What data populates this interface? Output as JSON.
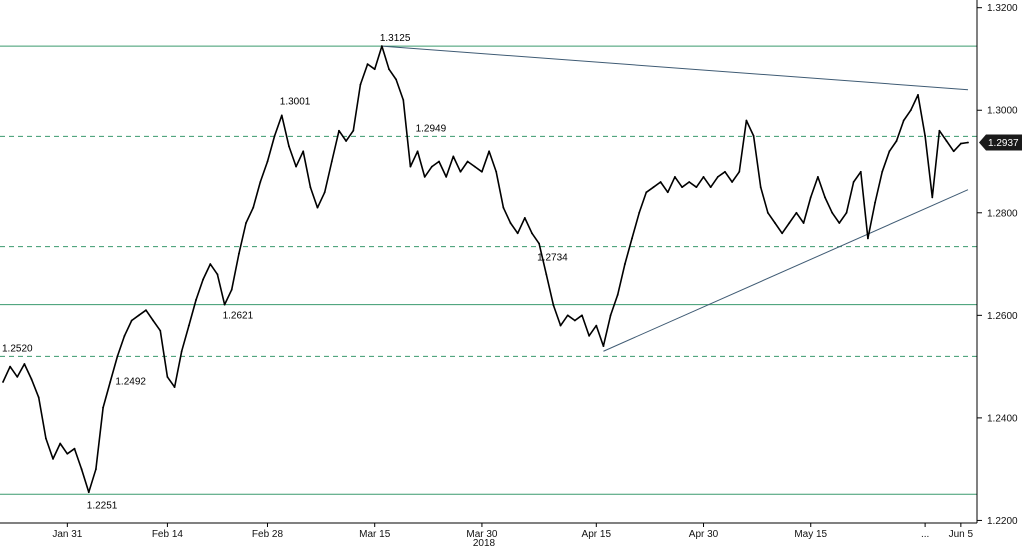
{
  "chart_data": {
    "type": "line",
    "title": "",
    "x_axis": {
      "year_label": "2018",
      "date_range": [
        "2018-01-22",
        "2018-06-06"
      ],
      "ticks": [
        {
          "label": "Jan 31",
          "date": "2018-01-31"
        },
        {
          "label": "Feb 14",
          "date": "2018-02-14"
        },
        {
          "label": "Feb 28",
          "date": "2018-02-28"
        },
        {
          "label": "Mar 15",
          "date": "2018-03-15"
        },
        {
          "label": "Mar 30",
          "date": "2018-03-30"
        },
        {
          "label": "Apr 15",
          "date": "2018-04-15"
        },
        {
          "label": "Apr 30",
          "date": "2018-04-30"
        },
        {
          "label": "May 15",
          "date": "2018-05-15"
        },
        {
          "label": "...",
          "date": "2018-05-31"
        },
        {
          "label": "Jun 5",
          "date": "2018-06-05"
        }
      ]
    },
    "y_axis": {
      "position": "right",
      "ylim": [
        1.2195,
        1.3215
      ],
      "ticks": [
        "1.2200",
        "1.2400",
        "1.2600",
        "1.2800",
        "1.3000",
        "1.3200"
      ]
    },
    "series": [
      {
        "values": [
          [
            "2018-01-22",
            1.247
          ],
          [
            "2018-01-23",
            1.25
          ],
          [
            "2018-01-24",
            1.248
          ],
          [
            "2018-01-25",
            1.2505
          ],
          [
            "2018-01-26",
            1.2475
          ],
          [
            "2018-01-27",
            1.244
          ],
          [
            "2018-01-28",
            1.236
          ],
          [
            "2018-01-29",
            1.232
          ],
          [
            "2018-01-30",
            1.235
          ],
          [
            "2018-01-31",
            1.233
          ],
          [
            "2018-02-01",
            1.234
          ],
          [
            "2018-02-02",
            1.23
          ],
          [
            "2018-02-03",
            1.2255
          ],
          [
            "2018-02-04",
            1.23
          ],
          [
            "2018-02-05",
            1.242
          ],
          [
            "2018-02-06",
            1.247
          ],
          [
            "2018-02-07",
            1.252
          ],
          [
            "2018-02-08",
            1.256
          ],
          [
            "2018-02-09",
            1.259
          ],
          [
            "2018-02-10",
            1.26
          ],
          [
            "2018-02-11",
            1.261
          ],
          [
            "2018-02-12",
            1.259
          ],
          [
            "2018-02-13",
            1.257
          ],
          [
            "2018-02-14",
            1.248
          ],
          [
            "2018-02-15",
            1.246
          ],
          [
            "2018-02-16",
            1.253
          ],
          [
            "2018-02-17",
            1.258
          ],
          [
            "2018-02-18",
            1.263
          ],
          [
            "2018-02-19",
            1.267
          ],
          [
            "2018-02-20",
            1.27
          ],
          [
            "2018-02-21",
            1.268
          ],
          [
            "2018-02-22",
            1.2621
          ],
          [
            "2018-02-23",
            1.265
          ],
          [
            "2018-02-24",
            1.272
          ],
          [
            "2018-02-25",
            1.278
          ],
          [
            "2018-02-26",
            1.281
          ],
          [
            "2018-02-27",
            1.286
          ],
          [
            "2018-02-28",
            1.29
          ],
          [
            "2018-03-01",
            1.295
          ],
          [
            "2018-03-02",
            1.299
          ],
          [
            "2018-03-03",
            1.293
          ],
          [
            "2018-03-04",
            1.289
          ],
          [
            "2018-03-05",
            1.292
          ],
          [
            "2018-03-06",
            1.285
          ],
          [
            "2018-03-07",
            1.281
          ],
          [
            "2018-03-08",
            1.284
          ],
          [
            "2018-03-09",
            1.29
          ],
          [
            "2018-03-10",
            1.296
          ],
          [
            "2018-03-11",
            1.294
          ],
          [
            "2018-03-12",
            1.296
          ],
          [
            "2018-03-13",
            1.305
          ],
          [
            "2018-03-14",
            1.309
          ],
          [
            "2018-03-15",
            1.308
          ],
          [
            "2018-03-16",
            1.3125
          ],
          [
            "2018-03-17",
            1.308
          ],
          [
            "2018-03-18",
            1.306
          ],
          [
            "2018-03-19",
            1.302
          ],
          [
            "2018-03-20",
            1.289
          ],
          [
            "2018-03-21",
            1.292
          ],
          [
            "2018-03-22",
            1.287
          ],
          [
            "2018-03-23",
            1.289
          ],
          [
            "2018-03-24",
            1.29
          ],
          [
            "2018-03-25",
            1.287
          ],
          [
            "2018-03-26",
            1.291
          ],
          [
            "2018-03-27",
            1.288
          ],
          [
            "2018-03-28",
            1.29
          ],
          [
            "2018-03-29",
            1.289
          ],
          [
            "2018-03-30",
            1.288
          ],
          [
            "2018-03-31",
            1.292
          ],
          [
            "2018-04-01",
            1.288
          ],
          [
            "2018-04-02",
            1.281
          ],
          [
            "2018-04-03",
            1.278
          ],
          [
            "2018-04-04",
            1.276
          ],
          [
            "2018-04-05",
            1.279
          ],
          [
            "2018-04-06",
            1.276
          ],
          [
            "2018-04-07",
            1.274
          ],
          [
            "2018-04-08",
            1.268
          ],
          [
            "2018-04-09",
            1.262
          ],
          [
            "2018-04-10",
            1.258
          ],
          [
            "2018-04-11",
            1.26
          ],
          [
            "2018-04-12",
            1.259
          ],
          [
            "2018-04-13",
            1.26
          ],
          [
            "2018-04-14",
            1.256
          ],
          [
            "2018-04-15",
            1.258
          ],
          [
            "2018-04-16",
            1.254
          ],
          [
            "2018-04-17",
            1.26
          ],
          [
            "2018-04-18",
            1.264
          ],
          [
            "2018-04-19",
            1.27
          ],
          [
            "2018-04-20",
            1.275
          ],
          [
            "2018-04-21",
            1.28
          ],
          [
            "2018-04-22",
            1.284
          ],
          [
            "2018-04-23",
            1.285
          ],
          [
            "2018-04-24",
            1.286
          ],
          [
            "2018-04-25",
            1.284
          ],
          [
            "2018-04-26",
            1.287
          ],
          [
            "2018-04-27",
            1.285
          ],
          [
            "2018-04-28",
            1.286
          ],
          [
            "2018-04-29",
            1.285
          ],
          [
            "2018-04-30",
            1.287
          ],
          [
            "2018-05-01",
            1.285
          ],
          [
            "2018-05-02",
            1.287
          ],
          [
            "2018-05-03",
            1.288
          ],
          [
            "2018-05-04",
            1.286
          ],
          [
            "2018-05-05",
            1.288
          ],
          [
            "2018-05-06",
            1.298
          ],
          [
            "2018-05-07",
            1.295
          ],
          [
            "2018-05-08",
            1.285
          ],
          [
            "2018-05-09",
            1.28
          ],
          [
            "2018-05-10",
            1.278
          ],
          [
            "2018-05-11",
            1.276
          ],
          [
            "2018-05-12",
            1.278
          ],
          [
            "2018-05-13",
            1.28
          ],
          [
            "2018-05-14",
            1.278
          ],
          [
            "2018-05-15",
            1.283
          ],
          [
            "2018-05-16",
            1.287
          ],
          [
            "2018-05-17",
            1.283
          ],
          [
            "2018-05-18",
            1.28
          ],
          [
            "2018-05-19",
            1.278
          ],
          [
            "2018-05-20",
            1.28
          ],
          [
            "2018-05-21",
            1.286
          ],
          [
            "2018-05-22",
            1.288
          ],
          [
            "2018-05-23",
            1.275
          ],
          [
            "2018-05-24",
            1.282
          ],
          [
            "2018-05-25",
            1.288
          ],
          [
            "2018-05-26",
            1.292
          ],
          [
            "2018-05-27",
            1.294
          ],
          [
            "2018-05-28",
            1.298
          ],
          [
            "2018-05-29",
            1.3
          ],
          [
            "2018-05-30",
            1.303
          ],
          [
            "2018-05-31",
            1.295
          ],
          [
            "2018-06-01",
            1.283
          ],
          [
            "2018-06-02",
            1.296
          ],
          [
            "2018-06-03",
            1.294
          ],
          [
            "2018-06-04",
            1.292
          ],
          [
            "2018-06-05",
            1.2935
          ],
          [
            "2018-06-06",
            1.2937
          ]
        ],
        "color": "#000000"
      }
    ],
    "last_value": {
      "label": "1.2937",
      "value": 1.2937
    },
    "annotations": [
      {
        "label": "1.2520",
        "date": "2018-01-22",
        "value": 1.252
      },
      {
        "label": "1.2251",
        "date": "2018-02-03",
        "value": 1.2251
      },
      {
        "label": "1.2492",
        "date": "2018-02-07",
        "value": 1.2492
      },
      {
        "label": "1.2621",
        "date": "2018-02-22",
        "value": 1.2621
      },
      {
        "label": "1.3001",
        "date": "2018-03-02",
        "value": 1.3001
      },
      {
        "label": "1.3125",
        "date": "2018-03-16",
        "value": 1.3125
      },
      {
        "label": "1.2949",
        "date": "2018-03-21",
        "value": 1.2949
      },
      {
        "label": "1.2734",
        "date": "2018-04-07",
        "value": 1.2734
      }
    ],
    "horizontal_levels": [
      {
        "value": 1.3125,
        "style": "solid"
      },
      {
        "value": 1.2949,
        "style": "dashed"
      },
      {
        "value": 1.2734,
        "style": "dashed"
      },
      {
        "value": 1.2621,
        "style": "solid"
      },
      {
        "value": 1.252,
        "style": "dashed"
      },
      {
        "value": 1.2251,
        "style": "solid"
      }
    ],
    "trendlines": [
      {
        "from": [
          "2018-03-16",
          1.3125
        ],
        "to": [
          "2018-06-06",
          1.304
        ]
      },
      {
        "from": [
          "2018-04-16",
          1.253
        ],
        "to": [
          "2018-06-06",
          1.2845
        ]
      }
    ],
    "grid": false,
    "legend": "none",
    "colors": {
      "price": "#000000",
      "level": "#3a9a6e",
      "trendline": "#3f5b74",
      "badge": "#1a1a1a"
    }
  }
}
